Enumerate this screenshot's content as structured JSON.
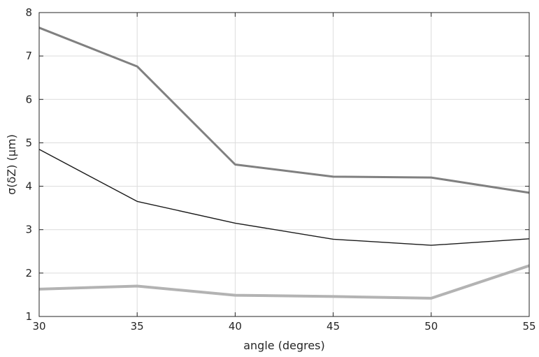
{
  "chart_data": {
    "type": "line",
    "title": "",
    "xlabel": "angle (degres)",
    "ylabel": "σ(δZ) (μm)",
    "xlim": [
      30,
      55
    ],
    "ylim": [
      1,
      8
    ],
    "xticks": [
      30,
      35,
      40,
      45,
      50,
      55
    ],
    "yticks": [
      1,
      2,
      3,
      4,
      5,
      6,
      7,
      8
    ],
    "grid": true,
    "x": [
      30,
      35,
      40,
      45,
      50,
      55
    ],
    "series": [
      {
        "values": [
          7.65,
          6.76,
          4.5,
          4.22,
          4.2,
          3.85
        ],
        "color": "#808080",
        "line_width": 3
      },
      {
        "values": [
          4.85,
          3.65,
          3.15,
          2.78,
          2.64,
          2.79
        ],
        "color": "#1a1a1a",
        "line_width": 1.4
      },
      {
        "values": [
          1.63,
          1.7,
          1.49,
          1.46,
          1.42,
          2.17
        ],
        "color": "#b3b3b3",
        "line_width": 4
      }
    ]
  }
}
